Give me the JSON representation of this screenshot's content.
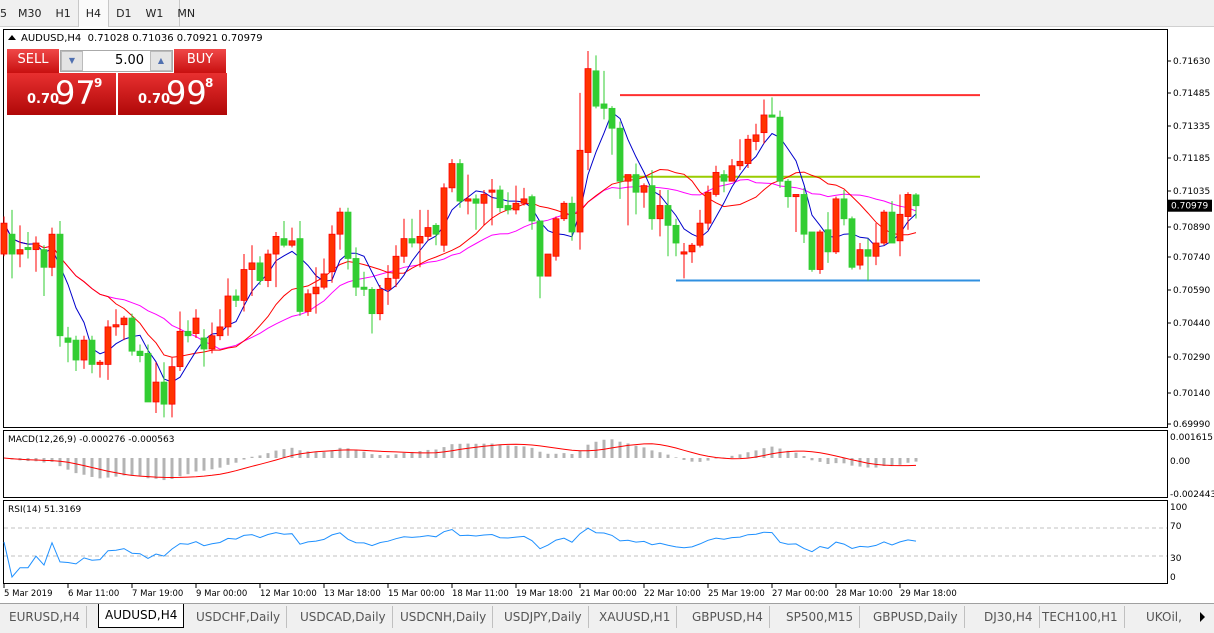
{
  "toolbar": {
    "timeframes": [
      {
        "label": "5"
      },
      {
        "label": "M30"
      },
      {
        "label": "H1"
      },
      {
        "label": "H4",
        "active": true
      },
      {
        "label": "D1"
      },
      {
        "label": "W1"
      },
      {
        "label": "MN"
      }
    ]
  },
  "symbol_line": {
    "symbol": "AUDUSD,H4",
    "open": "0.71028",
    "high": "0.71036",
    "low": "0.70921",
    "close": "0.70979"
  },
  "trade_panel": {
    "sell_label": "SELL",
    "buy_label": "BUY",
    "lot": "5.00",
    "sell_price": {
      "prefix": "0.70",
      "big": "97",
      "sup": "9"
    },
    "buy_price": {
      "prefix": "0.70",
      "big": "99",
      "sup": "8"
    },
    "color": "#d42020"
  },
  "colors": {
    "bull": "#ff3300",
    "bear": "#32cd32",
    "ma_fast": "#0000cc",
    "ma_mid": "#ff0000",
    "ma_slow": "#ff00ff",
    "macd_hist": "#b4b4b4",
    "macd_signal": "#ff0000",
    "rsi": "#1e90ff"
  },
  "chart_data": {
    "type": "candlestick",
    "price_ticks": [
      "0.71630",
      "0.71485",
      "0.71335",
      "0.71185",
      "0.71035",
      "0.70890",
      "0.70740",
      "0.70590",
      "0.70440",
      "0.70290",
      "0.70140",
      "0.69990"
    ],
    "ylim": [
      0.6999,
      0.7163
    ],
    "current_price": "0.70979",
    "time_labels": [
      {
        "bar": 0,
        "label": "5 Mar 2019"
      },
      {
        "bar": 8,
        "label": "6 Mar 11:00"
      },
      {
        "bar": 16,
        "label": "7 Mar 19:00"
      },
      {
        "bar": 24,
        "label": "9 Mar 00:00"
      },
      {
        "bar": 32,
        "label": "12 Mar 10:00"
      },
      {
        "bar": 40,
        "label": "13 Mar 18:00"
      },
      {
        "bar": 48,
        "label": "15 Mar 00:00"
      },
      {
        "bar": 56,
        "label": "18 Mar 11:00"
      },
      {
        "bar": 64,
        "label": "19 Mar 18:00"
      },
      {
        "bar": 72,
        "label": "21 Mar 00:00"
      },
      {
        "bar": 80,
        "label": "22 Mar 10:00"
      },
      {
        "bar": 88,
        "label": "25 Mar 19:00"
      },
      {
        "bar": 96,
        "label": "27 Mar 00:00"
      },
      {
        "bar": 104,
        "label": "28 Mar 10:00"
      },
      {
        "bar": 112,
        "label": "29 Mar 18:00"
      }
    ],
    "hlines": [
      {
        "price": 0.7148,
        "from_bar": 77,
        "to_bar": 122,
        "color": "#ff3030"
      },
      {
        "price": 0.7111,
        "from_bar": 77,
        "to_bar": 122,
        "color": "#99cc00"
      },
      {
        "price": 0.7064,
        "from_bar": 84,
        "to_bar": 122,
        "color": "#3090e0"
      }
    ],
    "ohlc": [
      [
        0.7076,
        0.709,
        0.7093,
        0.7075
      ],
      [
        0.7085,
        0.7076,
        0.7096,
        0.7065
      ],
      [
        0.7076,
        0.7078,
        0.7089,
        0.707
      ],
      [
        0.7079,
        0.7078,
        0.7086,
        0.7074
      ],
      [
        0.7078,
        0.7081,
        0.7084,
        0.7068
      ],
      [
        0.7078,
        0.707,
        0.708,
        0.7057
      ],
      [
        0.707,
        0.7085,
        0.7088,
        0.7066
      ],
      [
        0.7085,
        0.7039,
        0.7091,
        0.7034
      ],
      [
        0.7038,
        0.7036,
        0.7043,
        0.7027
      ],
      [
        0.7037,
        0.7028,
        0.7039,
        0.7023
      ],
      [
        0.7028,
        0.7037,
        0.7039,
        0.7024
      ],
      [
        0.7037,
        0.7026,
        0.7039,
        0.7022
      ],
      [
        0.7026,
        0.7027,
        0.7028,
        0.702
      ],
      [
        0.7026,
        0.7043,
        0.7046,
        0.7019
      ],
      [
        0.7043,
        0.7044,
        0.7051,
        0.7039
      ],
      [
        0.7044,
        0.7047,
        0.7048,
        0.7037
      ],
      [
        0.7047,
        0.7032,
        0.7049,
        0.703
      ],
      [
        0.7032,
        0.703,
        0.7035,
        0.7027
      ],
      [
        0.7031,
        0.7009,
        0.7035,
        0.7009
      ],
      [
        0.7009,
        0.7018,
        0.7027,
        0.7004
      ],
      [
        0.7018,
        0.7008,
        0.7027,
        0.7002
      ],
      [
        0.7008,
        0.7025,
        0.7029,
        0.7002
      ],
      [
        0.7025,
        0.7041,
        0.705,
        0.7023
      ],
      [
        0.7041,
        0.7039,
        0.7046,
        0.7036
      ],
      [
        0.704,
        0.7047,
        0.7051,
        0.7038
      ],
      [
        0.7038,
        0.7033,
        0.7042,
        0.7025
      ],
      [
        0.7033,
        0.7039,
        0.7045,
        0.7031
      ],
      [
        0.7039,
        0.7043,
        0.7051,
        0.7037
      ],
      [
        0.7043,
        0.7057,
        0.7065,
        0.7039
      ],
      [
        0.7057,
        0.7055,
        0.706,
        0.7052
      ],
      [
        0.7055,
        0.7069,
        0.7076,
        0.705
      ],
      [
        0.7069,
        0.7072,
        0.708,
        0.7057
      ],
      [
        0.7072,
        0.7064,
        0.7075,
        0.7062
      ],
      [
        0.7064,
        0.7076,
        0.7078,
        0.7061
      ],
      [
        0.7076,
        0.7084,
        0.7086,
        0.7061
      ],
      [
        0.7083,
        0.708,
        0.7091,
        0.7079
      ],
      [
        0.708,
        0.7082,
        0.7088,
        0.7079
      ],
      [
        0.7083,
        0.705,
        0.7091,
        0.7048
      ],
      [
        0.705,
        0.7058,
        0.706,
        0.7048
      ],
      [
        0.7058,
        0.7061,
        0.707,
        0.7049
      ],
      [
        0.7061,
        0.7067,
        0.7074,
        0.706
      ],
      [
        0.7068,
        0.7085,
        0.7089,
        0.7063
      ],
      [
        0.7085,
        0.7095,
        0.7097,
        0.7078
      ],
      [
        0.7095,
        0.7074,
        0.7097,
        0.7069
      ],
      [
        0.7074,
        0.7061,
        0.7079,
        0.7057
      ],
      [
        0.7061,
        0.706,
        0.7068,
        0.7057
      ],
      [
        0.706,
        0.7049,
        0.7061,
        0.704
      ],
      [
        0.7049,
        0.706,
        0.7062,
        0.7046
      ],
      [
        0.706,
        0.7065,
        0.7071,
        0.7053
      ],
      [
        0.7065,
        0.7075,
        0.708,
        0.7061
      ],
      [
        0.7075,
        0.7083,
        0.7092,
        0.7072
      ],
      [
        0.7083,
        0.7081,
        0.7092,
        0.7079
      ],
      [
        0.7081,
        0.7084,
        0.7096,
        0.707
      ],
      [
        0.7084,
        0.7088,
        0.7096,
        0.7082
      ],
      [
        0.7089,
        0.7085,
        0.709,
        0.708
      ],
      [
        0.708,
        0.7106,
        0.7108,
        0.7077
      ],
      [
        0.7106,
        0.7117,
        0.7119,
        0.7104
      ],
      [
        0.7117,
        0.71,
        0.7119,
        0.7097
      ],
      [
        0.71,
        0.7101,
        0.7112,
        0.7094
      ],
      [
        0.7101,
        0.7099,
        0.7103,
        0.7087
      ],
      [
        0.7099,
        0.7103,
        0.7105,
        0.7089
      ],
      [
        0.7104,
        0.7105,
        0.711,
        0.7089
      ],
      [
        0.7105,
        0.7097,
        0.7107,
        0.7095
      ],
      [
        0.7098,
        0.7096,
        0.7104,
        0.7094
      ],
      [
        0.7096,
        0.7099,
        0.7107,
        0.7094
      ],
      [
        0.7099,
        0.7101,
        0.7106,
        0.7098
      ],
      [
        0.7102,
        0.7091,
        0.7103,
        0.7087
      ],
      [
        0.7091,
        0.7066,
        0.7091,
        0.7056
      ],
      [
        0.7066,
        0.7076,
        0.7076,
        0.7066
      ],
      [
        0.7075,
        0.7092,
        0.7093,
        0.7073
      ],
      [
        0.7092,
        0.7099,
        0.71,
        0.7091
      ],
      [
        0.7099,
        0.7086,
        0.7102,
        0.7082
      ],
      [
        0.7086,
        0.7123,
        0.7149,
        0.7078
      ],
      [
        0.7122,
        0.716,
        0.7168,
        0.7114
      ],
      [
        0.7159,
        0.7143,
        0.7166,
        0.7142
      ],
      [
        0.7144,
        0.7142,
        0.7159,
        0.7137
      ],
      [
        0.7142,
        0.7133,
        0.7143,
        0.7121
      ],
      [
        0.7133,
        0.7109,
        0.7136,
        0.7101
      ],
      [
        0.7109,
        0.7112,
        0.7112,
        0.7089
      ],
      [
        0.7112,
        0.7104,
        0.7117,
        0.7094
      ],
      [
        0.7104,
        0.7107,
        0.7108,
        0.7097
      ],
      [
        0.7107,
        0.7092,
        0.7114,
        0.7087
      ],
      [
        0.7092,
        0.7098,
        0.7105,
        0.7084
      ],
      [
        0.7098,
        0.7089,
        0.7105,
        0.7075
      ],
      [
        0.7089,
        0.7081,
        0.7092,
        0.7075
      ],
      [
        0.7076,
        0.7077,
        0.7081,
        0.7065
      ],
      [
        0.7077,
        0.708,
        0.7081,
        0.7072
      ],
      [
        0.708,
        0.709,
        0.7096,
        0.7079
      ],
      [
        0.709,
        0.7104,
        0.7107,
        0.7087
      ],
      [
        0.7103,
        0.7113,
        0.7116,
        0.7102
      ],
      [
        0.7112,
        0.7109,
        0.7114,
        0.7104
      ],
      [
        0.7109,
        0.7116,
        0.7119,
        0.7109
      ],
      [
        0.7116,
        0.7118,
        0.7128,
        0.7114
      ],
      [
        0.7117,
        0.7128,
        0.713,
        0.7115
      ],
      [
        0.7127,
        0.713,
        0.7135,
        0.7123
      ],
      [
        0.7131,
        0.7139,
        0.7146,
        0.7126
      ],
      [
        0.7139,
        0.7138,
        0.7147,
        0.7138
      ],
      [
        0.7138,
        0.7109,
        0.7141,
        0.7106
      ],
      [
        0.7109,
        0.7102,
        0.711,
        0.7097
      ],
      [
        0.7102,
        0.7103,
        0.7103,
        0.7086
      ],
      [
        0.7103,
        0.7085,
        0.7106,
        0.7081
      ],
      [
        0.7086,
        0.7069,
        0.7086,
        0.7068
      ],
      [
        0.7069,
        0.7086,
        0.7087,
        0.7067
      ],
      [
        0.7087,
        0.7077,
        0.7095,
        0.7072
      ],
      [
        0.7077,
        0.7101,
        0.7102,
        0.7076
      ],
      [
        0.7101,
        0.7092,
        0.7105,
        0.7089
      ],
      [
        0.7092,
        0.707,
        0.7093,
        0.7069
      ],
      [
        0.7071,
        0.7078,
        0.7081,
        0.7069
      ],
      [
        0.7078,
        0.7075,
        0.7083,
        0.7064
      ],
      [
        0.7075,
        0.7081,
        0.709,
        0.7071
      ],
      [
        0.7081,
        0.7095,
        0.7096,
        0.708
      ],
      [
        0.7095,
        0.7081,
        0.71,
        0.7081
      ],
      [
        0.7082,
        0.7094,
        0.7103,
        0.7075
      ],
      [
        0.7093,
        0.7103,
        0.7104,
        0.7087
      ],
      [
        0.71028,
        0.70979,
        0.71036,
        0.70921
      ]
    ],
    "macd": {
      "label": "MACD(12,26,9) -0.000276 -0.000563",
      "ticks": [
        "0.001615",
        "0.00",
        "-0.002443"
      ],
      "ylim": [
        -0.002443,
        0.001615
      ]
    },
    "rsi": {
      "label": "RSI(14) 51.3169",
      "ticks": [
        "100",
        "70",
        "30",
        "0"
      ],
      "levels": [
        70,
        30
      ]
    }
  },
  "tabs": [
    {
      "label": "EURUSD,H4"
    },
    {
      "label": "AUDUSD,H4",
      "active": true
    },
    {
      "label": "USDCHF,Daily"
    },
    {
      "label": "USDCAD,Daily"
    },
    {
      "label": "USDCNH,Daily"
    },
    {
      "label": "USDJPY,Daily"
    },
    {
      "label": "XAUUSD,H1"
    },
    {
      "label": "GBPUSD,H4"
    },
    {
      "label": "SP500,M15"
    },
    {
      "label": "GBPUSD,Daily"
    },
    {
      "label": "DJ30,H4"
    },
    {
      "label": "TECH100,H1"
    },
    {
      "label": "UKOil,"
    }
  ]
}
